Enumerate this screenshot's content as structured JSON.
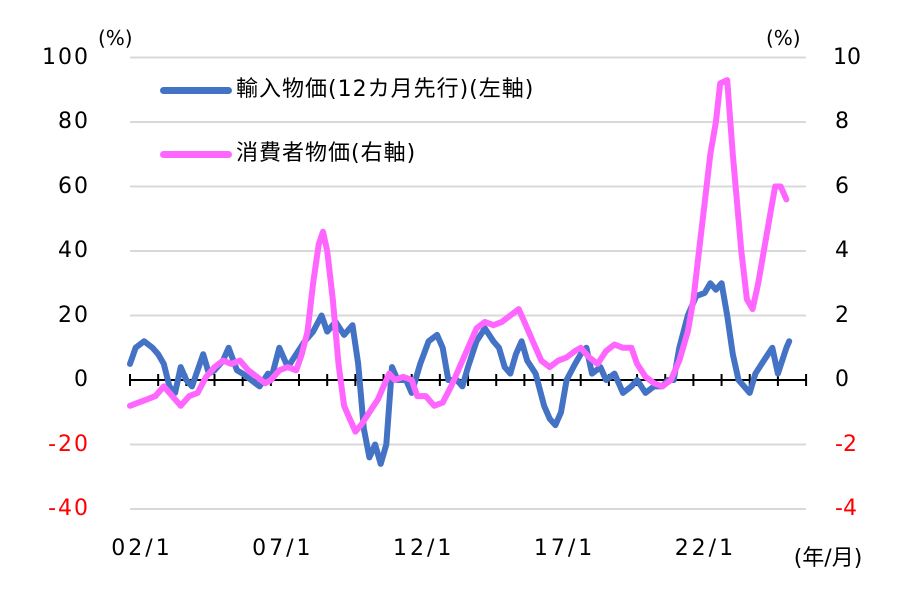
{
  "chart_data": {
    "type": "line",
    "title": "",
    "xlabel": "(年/月)",
    "ylabel_left": "(%)",
    "ylabel_right": "(%)",
    "x_tick_labels": [
      "02/1",
      "07/1",
      "12/1",
      "17/1",
      "22/1"
    ],
    "x_range": [
      "2002-01",
      "2026-01"
    ],
    "ylim_left": [
      -40,
      100
    ],
    "ylim_right": [
      -4,
      10
    ],
    "yticks_left": [
      100,
      80,
      60,
      40,
      20,
      0,
      -20,
      -40
    ],
    "yticks_right": [
      10,
      8,
      6,
      4,
      2,
      0,
      -2,
      -4
    ],
    "grid": true,
    "legend_position": "upper-left",
    "series": [
      {
        "name": "輸入物価(12カ月先行)(左軸)",
        "axis": "left",
        "color": "#4472c4",
        "points": [
          [
            2002.0,
            5
          ],
          [
            2002.2,
            10
          ],
          [
            2002.5,
            12
          ],
          [
            2002.8,
            10
          ],
          [
            2003.0,
            8
          ],
          [
            2003.2,
            5
          ],
          [
            2003.4,
            -2
          ],
          [
            2003.6,
            -4
          ],
          [
            2003.8,
            4
          ],
          [
            2004.0,
            0
          ],
          [
            2004.2,
            -2
          ],
          [
            2004.6,
            8
          ],
          [
            2004.8,
            2
          ],
          [
            2005.0,
            3
          ],
          [
            2005.3,
            6
          ],
          [
            2005.5,
            10
          ],
          [
            2005.8,
            3
          ],
          [
            2006.0,
            2
          ],
          [
            2006.3,
            0
          ],
          [
            2006.6,
            -2
          ],
          [
            2006.9,
            2
          ],
          [
            2007.0,
            0
          ],
          [
            2007.3,
            10
          ],
          [
            2007.6,
            4
          ],
          [
            2007.9,
            8
          ],
          [
            2008.2,
            12
          ],
          [
            2008.5,
            15
          ],
          [
            2008.8,
            20
          ],
          [
            2009.0,
            15
          ],
          [
            2009.3,
            18
          ],
          [
            2009.6,
            14
          ],
          [
            2009.9,
            17
          ],
          [
            2010.1,
            5
          ],
          [
            2010.3,
            -15
          ],
          [
            2010.5,
            -24
          ],
          [
            2010.7,
            -20
          ],
          [
            2010.9,
            -26
          ],
          [
            2011.1,
            -20
          ],
          [
            2011.3,
            4
          ],
          [
            2011.5,
            0
          ],
          [
            2011.8,
            0
          ],
          [
            2012.0,
            -4
          ],
          [
            2012.3,
            5
          ],
          [
            2012.6,
            12
          ],
          [
            2012.9,
            14
          ],
          [
            2013.1,
            10
          ],
          [
            2013.3,
            0
          ],
          [
            2013.6,
            0
          ],
          [
            2013.8,
            -2
          ],
          [
            2014.0,
            4
          ],
          [
            2014.3,
            12
          ],
          [
            2014.6,
            16
          ],
          [
            2014.9,
            12
          ],
          [
            2015.1,
            10
          ],
          [
            2015.3,
            4
          ],
          [
            2015.5,
            2
          ],
          [
            2015.7,
            8
          ],
          [
            2015.9,
            12
          ],
          [
            2016.1,
            6
          ],
          [
            2016.4,
            2
          ],
          [
            2016.7,
            -8
          ],
          [
            2016.9,
            -12
          ],
          [
            2017.1,
            -14
          ],
          [
            2017.3,
            -10
          ],
          [
            2017.5,
            0
          ],
          [
            2017.8,
            5
          ],
          [
            2018.0,
            8
          ],
          [
            2018.2,
            10
          ],
          [
            2018.4,
            2
          ],
          [
            2018.7,
            4
          ],
          [
            2018.9,
            0
          ],
          [
            2019.2,
            2
          ],
          [
            2019.5,
            -4
          ],
          [
            2019.8,
            -2
          ],
          [
            2020.0,
            0
          ],
          [
            2020.3,
            -4
          ],
          [
            2020.6,
            -2
          ],
          [
            2020.9,
            -2
          ],
          [
            2021.1,
            0
          ],
          [
            2021.3,
            0
          ],
          [
            2021.5,
            10
          ],
          [
            2021.8,
            20
          ],
          [
            2022.1,
            26
          ],
          [
            2022.4,
            27
          ],
          [
            2022.6,
            30
          ],
          [
            2022.8,
            28
          ],
          [
            2023.0,
            30
          ],
          [
            2023.2,
            20
          ],
          [
            2023.4,
            8
          ],
          [
            2023.6,
            0
          ],
          [
            2023.8,
            -2
          ],
          [
            2024.0,
            -4
          ],
          [
            2024.2,
            2
          ],
          [
            2024.5,
            6
          ],
          [
            2024.8,
            10
          ],
          [
            2025.0,
            2
          ],
          [
            2025.3,
            10
          ],
          [
            2025.4,
            12
          ]
        ]
      },
      {
        "name": "消費者物価(右軸)",
        "axis": "right",
        "color": "#ff66ff",
        "points": [
          [
            2002.0,
            -0.8
          ],
          [
            2002.3,
            -0.7
          ],
          [
            2002.6,
            -0.6
          ],
          [
            2002.9,
            -0.5
          ],
          [
            2003.2,
            -0.2
          ],
          [
            2003.5,
            -0.5
          ],
          [
            2003.8,
            -0.8
          ],
          [
            2004.1,
            -0.5
          ],
          [
            2004.4,
            -0.4
          ],
          [
            2004.7,
            0.1
          ],
          [
            2005.0,
            0.4
          ],
          [
            2005.3,
            0.6
          ],
          [
            2005.6,
            0.5
          ],
          [
            2005.9,
            0.6
          ],
          [
            2006.2,
            0.3
          ],
          [
            2006.5,
            0.1
          ],
          [
            2006.8,
            -0.1
          ],
          [
            2007.0,
            0.0
          ],
          [
            2007.3,
            0.3
          ],
          [
            2007.6,
            0.4
          ],
          [
            2007.9,
            0.3
          ],
          [
            2008.1,
            0.8
          ],
          [
            2008.3,
            1.5
          ],
          [
            2008.5,
            3.0
          ],
          [
            2008.7,
            4.2
          ],
          [
            2008.85,
            4.6
          ],
          [
            2009.0,
            4.0
          ],
          [
            2009.2,
            2.5
          ],
          [
            2009.4,
            0.5
          ],
          [
            2009.6,
            -0.8
          ],
          [
            2009.8,
            -1.2
          ],
          [
            2010.0,
            -1.6
          ],
          [
            2010.2,
            -1.4
          ],
          [
            2010.5,
            -1.0
          ],
          [
            2010.8,
            -0.6
          ],
          [
            2011.0,
            -0.2
          ],
          [
            2011.2,
            0.2
          ],
          [
            2011.4,
            0.0
          ],
          [
            2011.7,
            0.1
          ],
          [
            2012.0,
            0.0
          ],
          [
            2012.2,
            -0.5
          ],
          [
            2012.5,
            -0.5
          ],
          [
            2012.8,
            -0.8
          ],
          [
            2013.1,
            -0.7
          ],
          [
            2013.4,
            -0.2
          ],
          [
            2013.7,
            0.4
          ],
          [
            2014.0,
            1.0
          ],
          [
            2014.3,
            1.6
          ],
          [
            2014.6,
            1.8
          ],
          [
            2014.9,
            1.7
          ],
          [
            2015.2,
            1.8
          ],
          [
            2015.5,
            2.0
          ],
          [
            2015.8,
            2.2
          ],
          [
            2016.0,
            1.8
          ],
          [
            2016.3,
            1.2
          ],
          [
            2016.6,
            0.6
          ],
          [
            2016.9,
            0.4
          ],
          [
            2017.2,
            0.6
          ],
          [
            2017.5,
            0.7
          ],
          [
            2017.8,
            0.9
          ],
          [
            2018.0,
            1.0
          ],
          [
            2018.3,
            0.7
          ],
          [
            2018.6,
            0.5
          ],
          [
            2018.9,
            0.9
          ],
          [
            2019.2,
            1.1
          ],
          [
            2019.5,
            1.0
          ],
          [
            2019.8,
            1.0
          ],
          [
            2020.0,
            0.5
          ],
          [
            2020.3,
            0.1
          ],
          [
            2020.6,
            -0.1
          ],
          [
            2020.9,
            -0.2
          ],
          [
            2021.2,
            0.0
          ],
          [
            2021.5,
            0.6
          ],
          [
            2021.8,
            1.5
          ],
          [
            2022.0,
            2.5
          ],
          [
            2022.2,
            4.0
          ],
          [
            2022.4,
            5.5
          ],
          [
            2022.6,
            7.0
          ],
          [
            2022.8,
            8.0
          ],
          [
            2022.95,
            9.2
          ],
          [
            2023.2,
            9.3
          ],
          [
            2023.4,
            7.0
          ],
          [
            2023.7,
            4.0
          ],
          [
            2023.9,
            2.5
          ],
          [
            2024.1,
            2.2
          ],
          [
            2024.3,
            3.0
          ],
          [
            2024.6,
            4.5
          ],
          [
            2024.9,
            6.0
          ],
          [
            2025.1,
            6.0
          ],
          [
            2025.3,
            5.6
          ]
        ]
      }
    ]
  },
  "labels": {
    "unit_left": "(%)",
    "unit_right": "(%)",
    "x_unit": "(年/月)",
    "legend_1": "輸入物価(12カ月先行)(左軸)",
    "legend_2": "消費者物価(右軸)"
  },
  "colors": {
    "series_1": "#4472c4",
    "series_2": "#ff66ff",
    "negative_tick": "#ff0000",
    "grid": "#d9d9d9"
  }
}
